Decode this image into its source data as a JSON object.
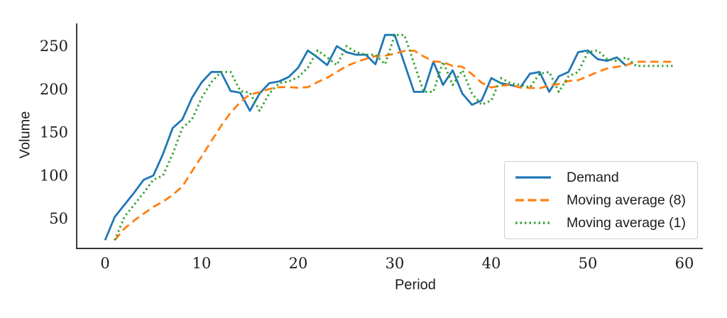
{
  "chart_data": {
    "type": "line",
    "title": "",
    "xlabel": "Period",
    "ylabel": "Volume",
    "x_ticks": [
      0,
      10,
      20,
      30,
      40,
      50,
      60
    ],
    "y_ticks": [
      50,
      100,
      150,
      200,
      250
    ],
    "xlim": [
      -3,
      62
    ],
    "ylim": [
      15,
      275
    ],
    "grid": false,
    "legend_position": "lower right",
    "series": [
      {
        "name": "Demand",
        "color": "#1f77b4",
        "style": "solid",
        "x_start": 0,
        "values": [
          25,
          52,
          66,
          80,
          95,
          100,
          125,
          155,
          165,
          190,
          208,
          220,
          220,
          198,
          196,
          175,
          195,
          207,
          209,
          214,
          225,
          245,
          237,
          228,
          250,
          243,
          240,
          240,
          229,
          263,
          263,
          230,
          197,
          197,
          232,
          205,
          222,
          195,
          182,
          187,
          213,
          207,
          205,
          202,
          218,
          220,
          197,
          215,
          220,
          243,
          245,
          235,
          233,
          237,
          227
        ]
      },
      {
        "name": "Moving average (8)",
        "color": "#ff7f0e",
        "style": "dashed",
        "x_start": 1,
        "values": [
          25,
          38.5,
          47.7,
          55.8,
          63.6,
          69.7,
          77.6,
          87.3,
          104.8,
          122,
          139.8,
          157.3,
          172.9,
          185.1,
          194,
          196.5,
          200.3,
          202.4,
          202.5,
          201.8,
          202.4,
          208.3,
          213.4,
          220,
          226.9,
          231.4,
          235.3,
          238.5,
          239,
          241.3,
          244.5,
          244.8,
          238.1,
          232.4,
          231.4,
          227,
          226.1,
          217.6,
          207.5,
          202.1,
          204.1,
          205.4,
          202,
          201.6,
          201.1,
          204.3,
          206.1,
          209.6,
          210.5,
          215,
          220,
          224.1,
          226,
          228.1,
          231.9,
          231.9,
          231.9,
          231.9,
          231.9
        ]
      },
      {
        "name": "Moving average (1)",
        "color": "#2ca02c",
        "style": "dotted",
        "x_start": 1,
        "values": [
          25,
          52,
          66,
          80,
          95,
          100,
          125,
          155,
          165,
          190,
          208,
          220,
          220,
          198,
          196,
          175,
          195,
          207,
          209,
          214,
          225,
          245,
          237,
          228,
          250,
          243,
          240,
          240,
          229,
          263,
          263,
          230,
          197,
          197,
          232,
          205,
          222,
          195,
          182,
          187,
          213,
          207,
          205,
          202,
          218,
          220,
          197,
          215,
          220,
          243,
          245,
          235,
          233,
          237,
          227,
          227,
          227,
          227,
          227
        ]
      }
    ]
  }
}
